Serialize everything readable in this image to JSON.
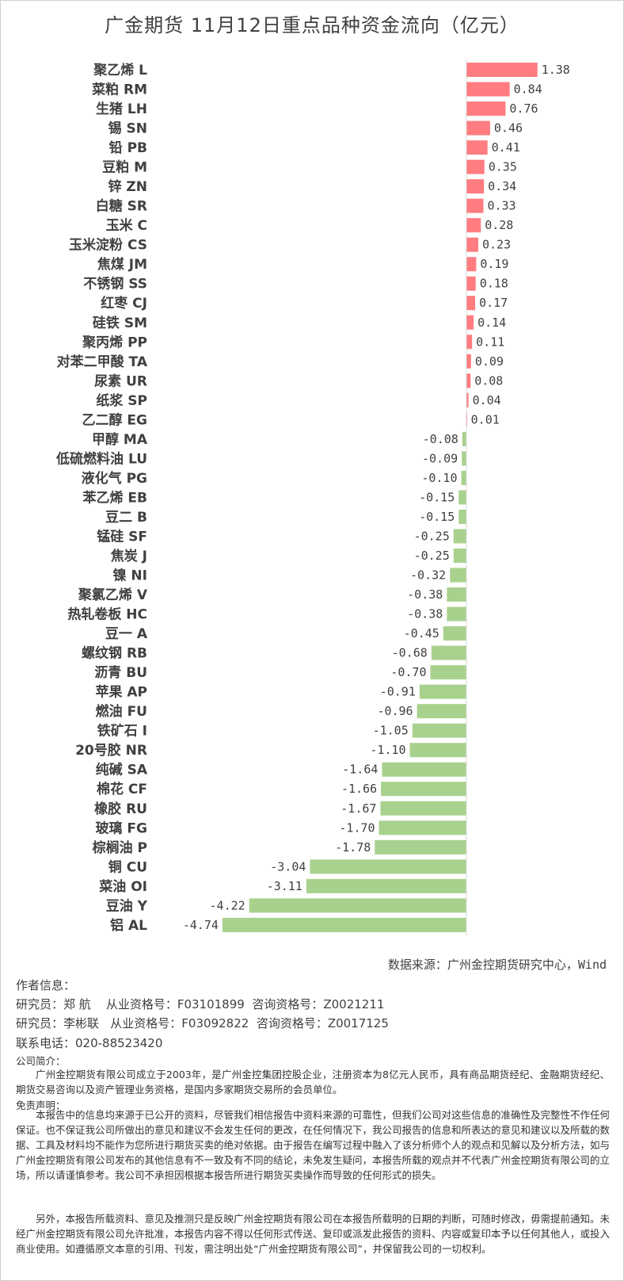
{
  "chart_data": {
    "type": "bar",
    "orientation": "horizontal",
    "title": "广金期货 11月12日重点品种资金流向（亿元）",
    "unit": "亿元",
    "categories": [
      "聚乙烯 L",
      "菜粕 RM",
      "生猪 LH",
      "锡 SN",
      "铅 PB",
      "豆粕 M",
      "锌 ZN",
      "白糖 SR",
      "玉米 C",
      "玉米淀粉 CS",
      "焦煤 JM",
      "不锈钢 SS",
      "红枣 CJ",
      "硅铁 SM",
      "聚丙烯 PP",
      "对苯二甲酸 TA",
      "尿素 UR",
      "纸浆 SP",
      "乙二醇 EG",
      "甲醇 MA",
      "低硫燃料油 LU",
      "液化气 PG",
      "苯乙烯 EB",
      "豆二 B",
      "锰硅 SF",
      "焦炭 J",
      "镍 NI",
      "聚氯乙烯 V",
      "热轧卷板 HC",
      "豆一 A",
      "螺纹钢 RB",
      "沥青 BU",
      "苹果 AP",
      "燃油 FU",
      "铁矿石 I",
      "20号胶 NR",
      "纯碱 SA",
      "棉花 CF",
      "橡胶 RU",
      "玻璃 FG",
      "棕榈油 P",
      "铜 CU",
      "菜油 OI",
      "豆油 Y",
      "铝 AL"
    ],
    "values": [
      1.38,
      0.84,
      0.76,
      0.46,
      0.41,
      0.35,
      0.34,
      0.33,
      0.28,
      0.23,
      0.19,
      0.18,
      0.17,
      0.14,
      0.11,
      0.09,
      0.08,
      0.04,
      0.01,
      -0.08,
      -0.09,
      -0.1,
      -0.15,
      -0.15,
      -0.25,
      -0.25,
      -0.32,
      -0.38,
      -0.38,
      -0.45,
      -0.68,
      -0.7,
      -0.91,
      -0.96,
      -1.05,
      -1.1,
      -1.64,
      -1.66,
      -1.67,
      -1.7,
      -1.78,
      -3.04,
      -3.11,
      -4.22,
      -4.74
    ],
    "value_labels": [
      "1.38",
      "0.84",
      "0.76",
      "0.46",
      "0.41",
      "0.35",
      "0.34",
      "0.33",
      "0.28",
      "0.23",
      "0.19",
      "0.18",
      "0.17",
      "0.14",
      "0.11",
      "0.09",
      "0.08",
      "0.04",
      "0.01",
      "-0.08",
      "-0.09",
      "-0.10",
      "-0.15",
      "-0.15",
      "-0.25",
      "-0.25",
      "-0.32",
      "-0.38",
      "-0.38",
      "-0.45",
      "-0.68",
      "-0.70",
      "-0.91",
      "-0.96",
      "-1.05",
      "-1.10",
      "-1.64",
      "-1.66",
      "-1.67",
      "-1.70",
      "-1.78",
      "-3.04",
      "-3.11",
      "-4.22",
      "-4.74"
    ],
    "positive_color": "#ff7c80",
    "negative_color": "#a9d18e",
    "xlim": [
      -4.74,
      1.38
    ],
    "grid": false,
    "legend": "none"
  },
  "source": "数据来源：广州金控期货研究中心，Wind",
  "author_heading": "作者信息：",
  "researchers": [
    "研究员：郑 航    从业资格号：F03101899  咨询资格号：Z0021211",
    "研究员：李彬联   从业资格号：F03092822  咨询资格号：Z0017125"
  ],
  "phone": "联系电话：020-88523420",
  "company_heading": "公司简介：",
  "company_text": "广州金控期货有限公司成立于2003年，是广州金控集团控股企业，注册资本为8亿元人民币，具有商品期货经纪、金融期货经纪、期货交易咨询以及资产管理业务资格，是国内多家期货交易所的会员单位。",
  "disclaimer_heading": "免责声明：",
  "disclaimer_p1": "本报告中的信息均来源于已公开的资料，尽管我们相信报告中资料来源的可靠性，但我们公司对这些信息的准确性及完整性不作任何保证。也不保证我公司所做出的意见和建议不会发生任何的更改，在任何情况下，我公司报告的信息和所表达的意见和建议以及所载的数据、工具及材料均不能作为您所进行期货买卖的绝对依据。由于报告在编写过程中融入了该分析师个人的观点和见解以及分析方法，如与广州金控期货有限公司发布的其他信息有不一致及有不同的结论，未免发生疑问，本报告所载的观点并不代表广州金控期货有限公司的立场，所以请谨慎参考。我公司不承担因根据本报告所进行期货买卖操作而导致的任何形式的损失。",
  "disclaimer_p2": "另外，本报告所载资料、意见及推测只是反映广州金控期货有限公司在本报告所载明的日期的判断，可随时修改，毋需提前通知。未经广州金控期货有限公司允许批准，本报告内容不得以任何形式传送、复印或派发此报告的资料、内容或复印本予以任何其他人，或投入商业使用。如遵循原文本意的引用、刊发，需注明出处“广州金控期货有限公司”，并保留我公司的一切权利。"
}
